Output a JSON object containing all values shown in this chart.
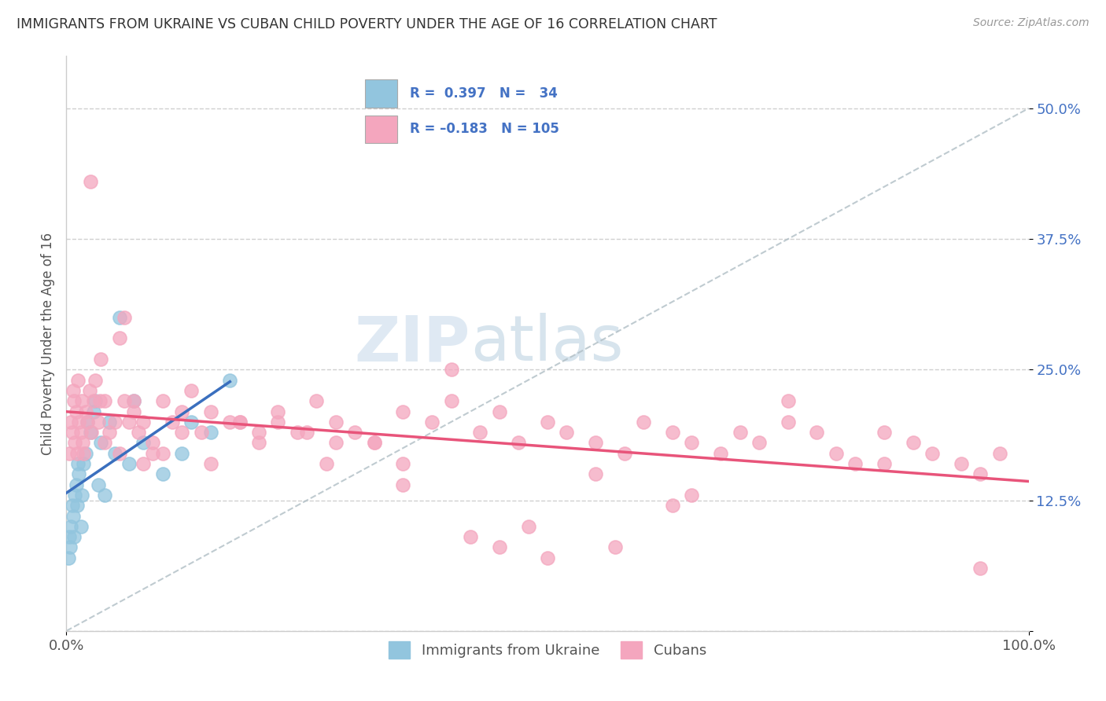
{
  "title": "IMMIGRANTS FROM UKRAINE VS CUBAN CHILD POVERTY UNDER THE AGE OF 16 CORRELATION CHART",
  "source": "Source: ZipAtlas.com",
  "ylabel": "Child Poverty Under the Age of 16",
  "xlim": [
    0,
    100
  ],
  "ylim": [
    0,
    55
  ],
  "ukraine_R": 0.397,
  "ukraine_N": 34,
  "cuban_R": -0.183,
  "cuban_N": 105,
  "ukraine_color": "#92c5de",
  "cuban_color": "#f4a6be",
  "ukraine_line_color": "#3a6fbe",
  "cuban_line_color": "#e8547a",
  "background_color": "#ffffff",
  "grid_color": "#d0d0d0",
  "watermark_zip": "ZIP",
  "watermark_atlas": "atlas",
  "ref_line_color": "#b0bec5",
  "legend_text_color": "#4472c4",
  "ytick_color": "#4472c4",
  "ukraine_x": [
    0.2,
    0.3,
    0.4,
    0.5,
    0.6,
    0.7,
    0.8,
    0.9,
    1.0,
    1.1,
    1.2,
    1.3,
    1.5,
    1.6,
    1.8,
    2.0,
    2.2,
    2.5,
    2.8,
    3.0,
    3.3,
    3.6,
    4.0,
    4.5,
    5.0,
    5.5,
    6.5,
    7.0,
    8.0,
    10.0,
    12.0,
    13.0,
    15.0,
    17.0
  ],
  "ukraine_y": [
    7,
    9,
    8,
    10,
    12,
    11,
    9,
    13,
    14,
    12,
    16,
    15,
    10,
    13,
    16,
    17,
    20,
    19,
    21,
    22,
    14,
    18,
    13,
    20,
    17,
    30,
    16,
    22,
    18,
    15,
    17,
    20,
    19,
    24
  ],
  "cuban_x": [
    0.3,
    0.5,
    0.6,
    0.7,
    0.8,
    0.9,
    1.0,
    1.1,
    1.2,
    1.3,
    1.5,
    1.6,
    1.7,
    1.8,
    2.0,
    2.2,
    2.4,
    2.6,
    2.8,
    3.0,
    3.3,
    3.6,
    4.0,
    4.5,
    5.0,
    5.5,
    6.0,
    6.5,
    7.0,
    7.5,
    8.0,
    9.0,
    10.0,
    11.0,
    12.0,
    13.0,
    15.0,
    17.0,
    20.0,
    22.0,
    24.0,
    26.0,
    28.0,
    30.0,
    32.0,
    35.0,
    38.0,
    40.0,
    43.0,
    45.0,
    47.0,
    50.0,
    52.0,
    55.0,
    58.0,
    60.0,
    63.0,
    65.0,
    68.0,
    70.0,
    72.0,
    75.0,
    78.0,
    80.0,
    82.0,
    85.0,
    88.0,
    90.0,
    93.0,
    95.0,
    97.0,
    2.5,
    4.0,
    6.0,
    8.0,
    10.0,
    14.0,
    18.0,
    22.0,
    28.0,
    35.0,
    42.0,
    50.0,
    57.0,
    63.0,
    48.0,
    40.0,
    32.0,
    25.0,
    18.0,
    12.0,
    7.0,
    3.5,
    5.5,
    9.0,
    15.0,
    20.0,
    27.0,
    35.0,
    45.0,
    55.0,
    65.0,
    75.0,
    85.0,
    95.0
  ],
  "cuban_y": [
    17,
    20,
    19,
    23,
    22,
    18,
    21,
    17,
    24,
    20,
    19,
    22,
    18,
    17,
    21,
    20,
    23,
    19,
    22,
    24,
    20,
    26,
    22,
    19,
    20,
    28,
    22,
    20,
    21,
    19,
    20,
    18,
    22,
    20,
    19,
    23,
    21,
    20,
    18,
    21,
    19,
    22,
    20,
    19,
    18,
    21,
    20,
    22,
    19,
    21,
    18,
    20,
    19,
    18,
    17,
    20,
    19,
    18,
    17,
    19,
    18,
    20,
    19,
    17,
    16,
    19,
    18,
    17,
    16,
    15,
    17,
    43,
    18,
    30,
    16,
    17,
    19,
    20,
    20,
    18,
    16,
    9,
    7,
    8,
    12,
    10,
    25,
    18,
    19,
    20,
    21,
    22,
    22,
    17,
    17,
    16,
    19,
    16,
    14,
    8,
    15,
    13,
    22,
    16,
    6
  ]
}
